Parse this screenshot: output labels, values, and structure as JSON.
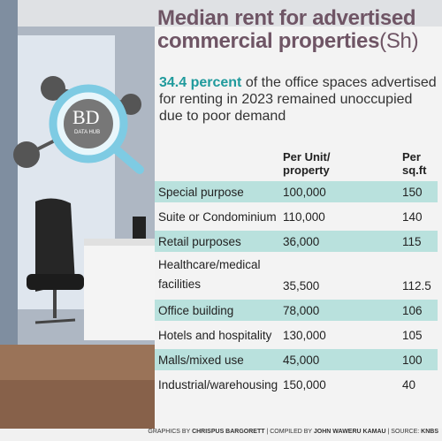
{
  "header": {
    "title": "Median rent for advertised commercial properties",
    "title_unit": "(Sh)",
    "highlight": "34.4 percent",
    "subtitle": "of the office spaces advertised for renting in 2023 remained unoccupied due to poor demand"
  },
  "logo": {
    "mark": "BD",
    "label": "DATA HUB"
  },
  "table": {
    "columns": [
      "Per Unit/\nproperty",
      "Per\nsq.ft"
    ],
    "rows": [
      [
        "Special purpose",
        "100,000",
        "150"
      ],
      [
        "Suite or Condominium",
        "110,000",
        "140"
      ],
      [
        "Retail purposes",
        "36,000",
        "115"
      ],
      [
        "Healthcare/medical\nfacilities",
        "35,500",
        "112.5"
      ],
      [
        "Office building",
        "78,000",
        "106"
      ],
      [
        "Hotels and hospitality",
        "130,000",
        "105"
      ],
      [
        "Malls/mixed use",
        "45,000",
        "100"
      ],
      [
        "Industrial/warehousing",
        "150,000",
        "40"
      ]
    ]
  },
  "footer": {
    "graphics_label": "GRAPHICS BY",
    "graphics_name": "CHRISPUS BARGORETT",
    "compiled_label": "COMPILED BY",
    "compiled_name": "JOHN WAWERU KAMAU",
    "source_label": "SOURCE:",
    "source_name": "KNBS"
  }
}
